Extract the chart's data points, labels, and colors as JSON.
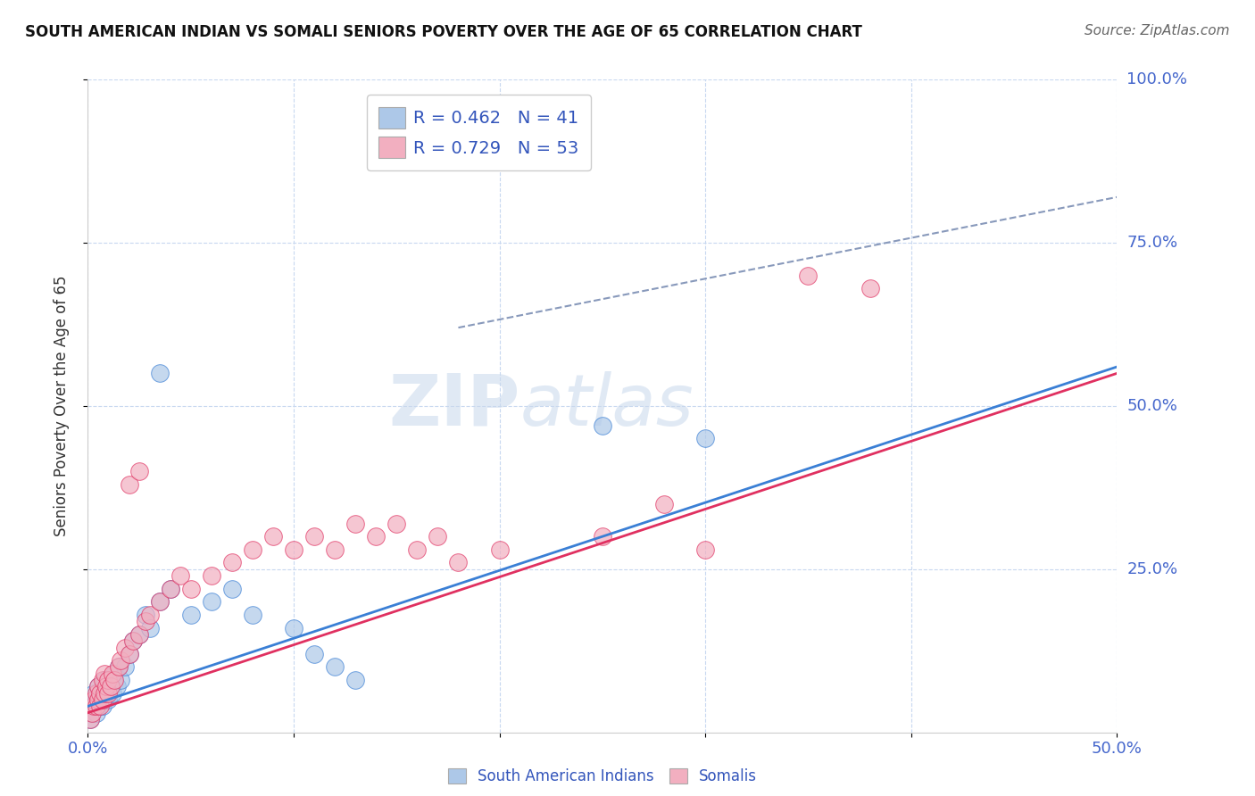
{
  "title": "SOUTH AMERICAN INDIAN VS SOMALI SENIORS POVERTY OVER THE AGE OF 65 CORRELATION CHART",
  "source": "Source: ZipAtlas.com",
  "ylabel": "Seniors Poverty Over the Age of 65",
  "xlim": [
    0.0,
    0.5
  ],
  "ylim": [
    0.0,
    1.0
  ],
  "xticks": [
    0.0,
    0.1,
    0.2,
    0.3,
    0.4,
    0.5
  ],
  "yticks": [
    0.25,
    0.5,
    0.75,
    1.0
  ],
  "xtick_labels": [
    "0.0%",
    "",
    "",
    "",
    "",
    "50.0%"
  ],
  "ytick_labels": [
    "25.0%",
    "50.0%",
    "75.0%",
    "100.0%"
  ],
  "blue_R": 0.462,
  "blue_N": 41,
  "pink_R": 0.729,
  "pink_N": 53,
  "blue_color": "#adc8e8",
  "pink_color": "#f2afc0",
  "blue_line_color": "#3a7fd5",
  "pink_line_color": "#e03060",
  "dashed_line_color": "#8899bb",
  "legend1_label": "South American Indians",
  "legend2_label": "Somalis",
  "watermark_zip": "ZIP",
  "watermark_atlas": "atlas",
  "blue_points": [
    [
      0.001,
      0.02
    ],
    [
      0.002,
      0.03
    ],
    [
      0.003,
      0.04
    ],
    [
      0.003,
      0.06
    ],
    [
      0.004,
      0.03
    ],
    [
      0.004,
      0.05
    ],
    [
      0.005,
      0.04
    ],
    [
      0.005,
      0.07
    ],
    [
      0.006,
      0.05
    ],
    [
      0.007,
      0.04
    ],
    [
      0.007,
      0.06
    ],
    [
      0.008,
      0.05
    ],
    [
      0.008,
      0.08
    ],
    [
      0.009,
      0.06
    ],
    [
      0.01,
      0.05
    ],
    [
      0.01,
      0.08
    ],
    [
      0.011,
      0.07
    ],
    [
      0.012,
      0.06
    ],
    [
      0.013,
      0.09
    ],
    [
      0.014,
      0.07
    ],
    [
      0.015,
      0.1
    ],
    [
      0.016,
      0.08
    ],
    [
      0.018,
      0.1
    ],
    [
      0.02,
      0.12
    ],
    [
      0.022,
      0.14
    ],
    [
      0.025,
      0.15
    ],
    [
      0.028,
      0.18
    ],
    [
      0.03,
      0.16
    ],
    [
      0.035,
      0.2
    ],
    [
      0.04,
      0.22
    ],
    [
      0.05,
      0.18
    ],
    [
      0.06,
      0.2
    ],
    [
      0.07,
      0.22
    ],
    [
      0.08,
      0.18
    ],
    [
      0.1,
      0.16
    ],
    [
      0.11,
      0.12
    ],
    [
      0.12,
      0.1
    ],
    [
      0.13,
      0.08
    ],
    [
      0.035,
      0.55
    ],
    [
      0.25,
      0.47
    ],
    [
      0.3,
      0.45
    ]
  ],
  "pink_points": [
    [
      0.001,
      0.02
    ],
    [
      0.002,
      0.03
    ],
    [
      0.003,
      0.04
    ],
    [
      0.003,
      0.05
    ],
    [
      0.004,
      0.04
    ],
    [
      0.004,
      0.06
    ],
    [
      0.005,
      0.05
    ],
    [
      0.005,
      0.07
    ],
    [
      0.006,
      0.04
    ],
    [
      0.006,
      0.06
    ],
    [
      0.007,
      0.05
    ],
    [
      0.007,
      0.08
    ],
    [
      0.008,
      0.06
    ],
    [
      0.008,
      0.09
    ],
    [
      0.009,
      0.07
    ],
    [
      0.01,
      0.06
    ],
    [
      0.01,
      0.08
    ],
    [
      0.011,
      0.07
    ],
    [
      0.012,
      0.09
    ],
    [
      0.013,
      0.08
    ],
    [
      0.015,
      0.1
    ],
    [
      0.016,
      0.11
    ],
    [
      0.018,
      0.13
    ],
    [
      0.02,
      0.12
    ],
    [
      0.022,
      0.14
    ],
    [
      0.025,
      0.15
    ],
    [
      0.028,
      0.17
    ],
    [
      0.03,
      0.18
    ],
    [
      0.035,
      0.2
    ],
    [
      0.04,
      0.22
    ],
    [
      0.045,
      0.24
    ],
    [
      0.05,
      0.22
    ],
    [
      0.06,
      0.24
    ],
    [
      0.07,
      0.26
    ],
    [
      0.08,
      0.28
    ],
    [
      0.09,
      0.3
    ],
    [
      0.1,
      0.28
    ],
    [
      0.11,
      0.3
    ],
    [
      0.12,
      0.28
    ],
    [
      0.13,
      0.32
    ],
    [
      0.14,
      0.3
    ],
    [
      0.15,
      0.32
    ],
    [
      0.16,
      0.28
    ],
    [
      0.17,
      0.3
    ],
    [
      0.18,
      0.26
    ],
    [
      0.2,
      0.28
    ],
    [
      0.25,
      0.3
    ],
    [
      0.3,
      0.28
    ],
    [
      0.02,
      0.38
    ],
    [
      0.025,
      0.4
    ],
    [
      0.35,
      0.7
    ],
    [
      0.38,
      0.68
    ],
    [
      0.28,
      0.35
    ]
  ],
  "blue_line": {
    "x0": 0.0,
    "y0": 0.04,
    "x1": 0.5,
    "y1": 0.56
  },
  "pink_line": {
    "x0": 0.0,
    "y0": 0.03,
    "x1": 0.5,
    "y1": 0.55
  },
  "dash_line": {
    "x0": 0.18,
    "y0": 0.62,
    "x1": 0.5,
    "y1": 0.82
  }
}
